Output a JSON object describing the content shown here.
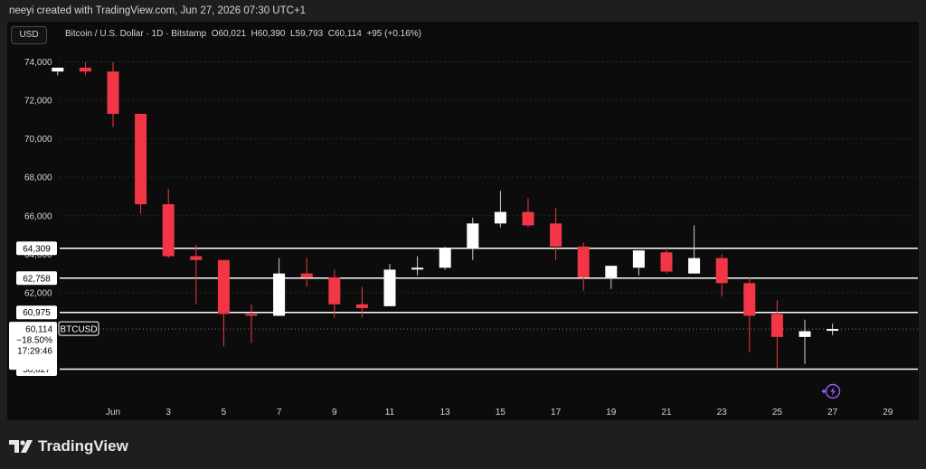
{
  "header": {
    "attribution": "neeyi created with TradingView.com, Jun 27, 2026 07:30 UTC+1"
  },
  "toolbar": {
    "currency_label": "USD"
  },
  "legend": {
    "symbol": "Bitcoin / U.S. Dollar · 1D · Bitstamp",
    "o_label": "O",
    "o_value": "60,021",
    "h_label": "H",
    "h_value": "60,390",
    "l_label": "L",
    "l_value": "59,793",
    "c_label": "C",
    "c_value": "60,114",
    "change": "+95 (+0.16%)"
  },
  "footer": {
    "brand": "TradingView"
  },
  "colors": {
    "up": "#ffffff",
    "down": "#f23645",
    "background": "#0c0c0c",
    "line": "#ffffff"
  },
  "chart_data": {
    "type": "candlestick",
    "ylim": [
      56500,
      75000
    ],
    "y_ticks": [
      {
        "value": 74000,
        "label": "74,000"
      },
      {
        "value": 72000,
        "label": "72,000"
      },
      {
        "value": 70000,
        "label": "70,000"
      },
      {
        "value": 68000,
        "label": "68,000"
      },
      {
        "value": 66000,
        "label": "66,000"
      },
      {
        "value": 62000,
        "label": "62,000"
      }
    ],
    "x_ticks": [
      {
        "day": 1,
        "label": "Jun"
      },
      {
        "day": 3,
        "label": "3"
      },
      {
        "day": 5,
        "label": "5"
      },
      {
        "day": 7,
        "label": "7"
      },
      {
        "day": 9,
        "label": "9"
      },
      {
        "day": 11,
        "label": "11"
      },
      {
        "day": 13,
        "label": "13"
      },
      {
        "day": 15,
        "label": "15"
      },
      {
        "day": 17,
        "label": "17"
      },
      {
        "day": 19,
        "label": "19"
      },
      {
        "day": 21,
        "label": "21"
      },
      {
        "day": 23,
        "label": "23"
      },
      {
        "day": 25,
        "label": "25"
      },
      {
        "day": 27,
        "label": "27"
      },
      {
        "day": 29,
        "label": "29"
      }
    ],
    "candles": [
      {
        "day": -1,
        "o": 73500,
        "h": 73700,
        "l": 73300,
        "c": 73700
      },
      {
        "day": 0,
        "o": 73700,
        "h": 74000,
        "l": 73300,
        "c": 73500
      },
      {
        "day": 1,
        "o": 73500,
        "h": 74000,
        "l": 70600,
        "c": 71300
      },
      {
        "day": 2,
        "o": 71300,
        "h": 71300,
        "l": 66100,
        "c": 66600
      },
      {
        "day": 3,
        "o": 66600,
        "h": 67400,
        "l": 63800,
        "c": 63900
      },
      {
        "day": 4,
        "o": 63900,
        "h": 64500,
        "l": 61400,
        "c": 63700
      },
      {
        "day": 5,
        "o": 63700,
        "h": 63700,
        "l": 59200,
        "c": 60900
      },
      {
        "day": 6,
        "o": 60900,
        "h": 61400,
        "l": 59400,
        "c": 60800
      },
      {
        "day": 7,
        "o": 60800,
        "h": 63800,
        "l": 60800,
        "c": 63000
      },
      {
        "day": 8,
        "o": 63000,
        "h": 63800,
        "l": 62300,
        "c": 62800
      },
      {
        "day": 9,
        "o": 62800,
        "h": 63200,
        "l": 60700,
        "c": 61400
      },
      {
        "day": 10,
        "o": 61400,
        "h": 62300,
        "l": 60700,
        "c": 61200
      },
      {
        "day": 11,
        "o": 61300,
        "h": 63500,
        "l": 61300,
        "c": 63200
      },
      {
        "day": 12,
        "o": 63300,
        "h": 63900,
        "l": 62900,
        "c": 63300
      },
      {
        "day": 13,
        "o": 63300,
        "h": 64400,
        "l": 63200,
        "c": 64300
      },
      {
        "day": 14,
        "o": 64300,
        "h": 65900,
        "l": 63700,
        "c": 65600
      },
      {
        "day": 15,
        "o": 65600,
        "h": 67300,
        "l": 65400,
        "c": 66200
      },
      {
        "day": 16,
        "o": 66200,
        "h": 66900,
        "l": 65400,
        "c": 65500
      },
      {
        "day": 17,
        "o": 65600,
        "h": 66400,
        "l": 63700,
        "c": 64400
      },
      {
        "day": 18,
        "o": 64400,
        "h": 64600,
        "l": 62100,
        "c": 62800
      },
      {
        "day": 19,
        "o": 62800,
        "h": 63400,
        "l": 62200,
        "c": 63400
      },
      {
        "day": 20,
        "o": 63300,
        "h": 64200,
        "l": 62900,
        "c": 64200
      },
      {
        "day": 21,
        "o": 64100,
        "h": 64400,
        "l": 63000,
        "c": 63100
      },
      {
        "day": 22,
        "o": 63000,
        "h": 65500,
        "l": 63000,
        "c": 63800
      },
      {
        "day": 23,
        "o": 63800,
        "h": 64000,
        "l": 61800,
        "c": 62500
      },
      {
        "day": 24,
        "o": 62500,
        "h": 62800,
        "l": 58900,
        "c": 60800
      },
      {
        "day": 25,
        "o": 60900,
        "h": 61600,
        "l": 58100,
        "c": 59700
      },
      {
        "day": 26,
        "o": 59700,
        "h": 60600,
        "l": 58300,
        "c": 60000
      },
      {
        "day": 27,
        "o": 60021,
        "h": 60390,
        "l": 59793,
        "c": 60114
      }
    ],
    "horizontal_levels": [
      {
        "value": 64309,
        "label": "64,309"
      },
      {
        "value": 62758,
        "label": "62,758"
      },
      {
        "value": 60975,
        "label": "60,975"
      },
      {
        "value": 58027,
        "label": "58,027"
      }
    ],
    "current_price": {
      "value": 60114,
      "label": "60,114",
      "change": "−18.50%",
      "countdown": "17:29:46",
      "symbol": "BTCUSD"
    },
    "hidden_tick_label": "64,000"
  }
}
